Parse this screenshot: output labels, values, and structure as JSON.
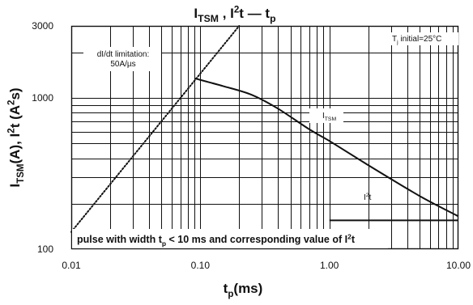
{
  "chart_data": {
    "type": "line",
    "title": {
      "parts": [
        {
          "text": "I",
          "sub": "TSM"
        },
        {
          "text": " , I"
        },
        {
          "text": "2",
          "sup": true
        },
        {
          "text": "t"
        },
        {
          "text": "   —   "
        },
        {
          "text": "t",
          "sub": "p"
        }
      ]
    },
    "xlabel": {
      "parts": [
        {
          "text": "t"
        },
        {
          "text": "p",
          "sub": true
        },
        {
          "text": "(ms)"
        }
      ]
    },
    "ylabel": {
      "parts": [
        {
          "text": "I"
        },
        {
          "text": "TSM",
          "sub": true
        },
        {
          "text": "(A), I"
        },
        {
          "text": "2",
          "sup": true
        },
        {
          "text": "t (A"
        },
        {
          "text": "2",
          "sup": true
        },
        {
          "text": "s)"
        }
      ]
    },
    "x_scale": "log",
    "y_scale": "log",
    "xlim": [
      0.01,
      10
    ],
    "ylim": [
      100,
      3000
    ],
    "x_ticks": [
      {
        "value": 0.01,
        "label": "0.01"
      },
      {
        "value": 0.1,
        "label": "0.10"
      },
      {
        "value": 1,
        "label": "1.00"
      },
      {
        "value": 10,
        "label": "10.00"
      }
    ],
    "y_ticks": [
      {
        "value": 100,
        "label": "100"
      },
      {
        "value": 1000,
        "label": "1000"
      },
      {
        "value": 3000,
        "label": "3000"
      }
    ],
    "grid": true,
    "series": [
      {
        "name": "ITSM",
        "style": "solid",
        "points": [
          [
            0.09,
            1350
          ],
          [
            0.15,
            1200
          ],
          [
            0.25,
            1050
          ],
          [
            0.4,
            850
          ],
          [
            0.7,
            620
          ],
          [
            1.0,
            520
          ],
          [
            2.0,
            360
          ],
          [
            5.0,
            225
          ],
          [
            10.0,
            165
          ]
        ]
      },
      {
        "name": "I2t",
        "style": "solid",
        "points": [
          [
            1.0,
            155
          ],
          [
            10.0,
            155
          ]
        ]
      },
      {
        "name": "dI/dt limitation",
        "style": "dotted",
        "points": [
          [
            0.01,
            130
          ],
          [
            0.2,
            3000
          ]
        ]
      }
    ],
    "annotations": [
      {
        "id": "didt",
        "lines": [
          "dI/dt limitation:",
          "50A/µs"
        ]
      },
      {
        "id": "tj",
        "parts": [
          {
            "text": "T"
          },
          {
            "text": "j",
            "sub": true
          },
          {
            "text": " initial=25°C"
          }
        ]
      },
      {
        "id": "itsm",
        "parts": [
          {
            "text": "I"
          },
          {
            "text": "TSM",
            "sub": true
          }
        ]
      },
      {
        "id": "i2t",
        "parts": [
          {
            "text": "I"
          },
          {
            "text": "2",
            "sup": true
          },
          {
            "text": "t"
          }
        ]
      },
      {
        "id": "note",
        "parts": [
          {
            "text": "pulse with width t"
          },
          {
            "text": "p",
            "sub": true
          },
          {
            "text": " < 10 ms and corresponding value of I"
          },
          {
            "text": "2",
            "sup": true
          },
          {
            "text": "t"
          }
        ]
      }
    ]
  }
}
